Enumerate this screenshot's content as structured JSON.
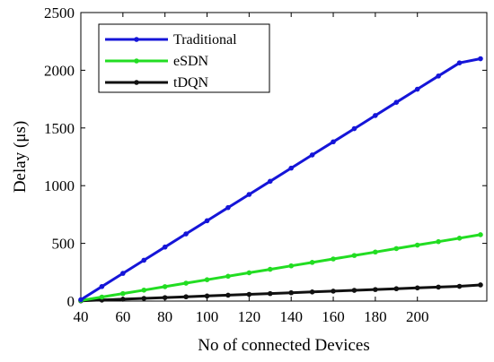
{
  "chart_data": {
    "type": "line",
    "x": [
      40,
      50,
      60,
      70,
      80,
      90,
      100,
      110,
      120,
      130,
      140,
      150,
      160,
      170,
      180,
      190,
      200,
      210,
      220,
      230
    ],
    "series": [
      {
        "name": "Traditional",
        "color": "#1515d8",
        "values": [
          12,
          126,
          240,
          354,
          468,
          582,
          696,
          810,
          924,
          1038,
          1152,
          1266,
          1380,
          1494,
          1608,
          1722,
          1836,
          1950,
          2064,
          2100
        ]
      },
      {
        "name": "eSDN",
        "color": "#22dd22",
        "values": [
          5,
          35,
          65,
          95,
          125,
          155,
          185,
          215,
          245,
          275,
          305,
          335,
          365,
          395,
          425,
          455,
          485,
          515,
          545,
          575
        ]
      },
      {
        "name": "tDQN",
        "color": "#111111",
        "values": [
          2,
          9,
          16,
          23,
          30,
          37,
          44,
          51,
          58,
          65,
          72,
          79,
          86,
          93,
          100,
          107,
          114,
          121,
          128,
          140
        ]
      }
    ],
    "xlabel": "No of connected Devices",
    "ylabel": "Delay (μs)",
    "xlim": [
      40,
      233
    ],
    "ylim": [
      0,
      2500
    ],
    "xticks": [
      40,
      60,
      80,
      100,
      120,
      140,
      160,
      180,
      200
    ],
    "xtick_labels": [
      "40",
      "60",
      "80",
      "100",
      "120",
      "140",
      "160",
      "180",
      "200"
    ],
    "yticks": [
      0,
      500,
      1000,
      1500,
      2000,
      2500
    ],
    "ytick_labels": [
      "0",
      "500",
      "1000",
      "1500",
      "2000",
      "2500"
    ],
    "legend_position": "top-left",
    "grid": false
  }
}
